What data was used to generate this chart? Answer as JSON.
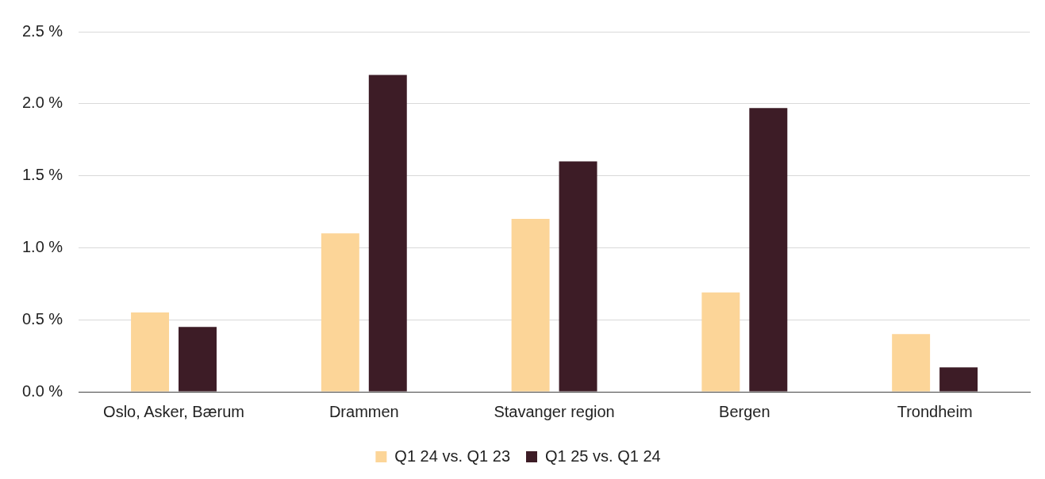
{
  "chart_data": {
    "type": "bar",
    "categories": [
      "Oslo, Asker, Bærum",
      "Drammen",
      "Stavanger region",
      "Bergen",
      "Trondheim"
    ],
    "series": [
      {
        "name": "Q1 24 vs. Q1 23",
        "color": "#fcd598",
        "values": [
          0.55,
          1.1,
          1.2,
          0.69,
          0.4
        ]
      },
      {
        "name": "Q1 25 vs. Q1 24",
        "color": "#3d1c26",
        "values": [
          0.45,
          2.2,
          1.6,
          1.97,
          0.17
        ]
      }
    ],
    "ylim": [
      0,
      2.5
    ],
    "yticks": [
      {
        "value": 0,
        "label": "0.0 %"
      },
      {
        "value": 0.5,
        "label": "0.5 %"
      },
      {
        "value": 1,
        "label": "1.0 %"
      },
      {
        "value": 1.5,
        "label": "1.5 %"
      },
      {
        "value": 2,
        "label": "2.0 %"
      },
      {
        "value": 2.5,
        "label": "2.5 %"
      }
    ],
    "grid": "y",
    "legend": "bottom"
  }
}
